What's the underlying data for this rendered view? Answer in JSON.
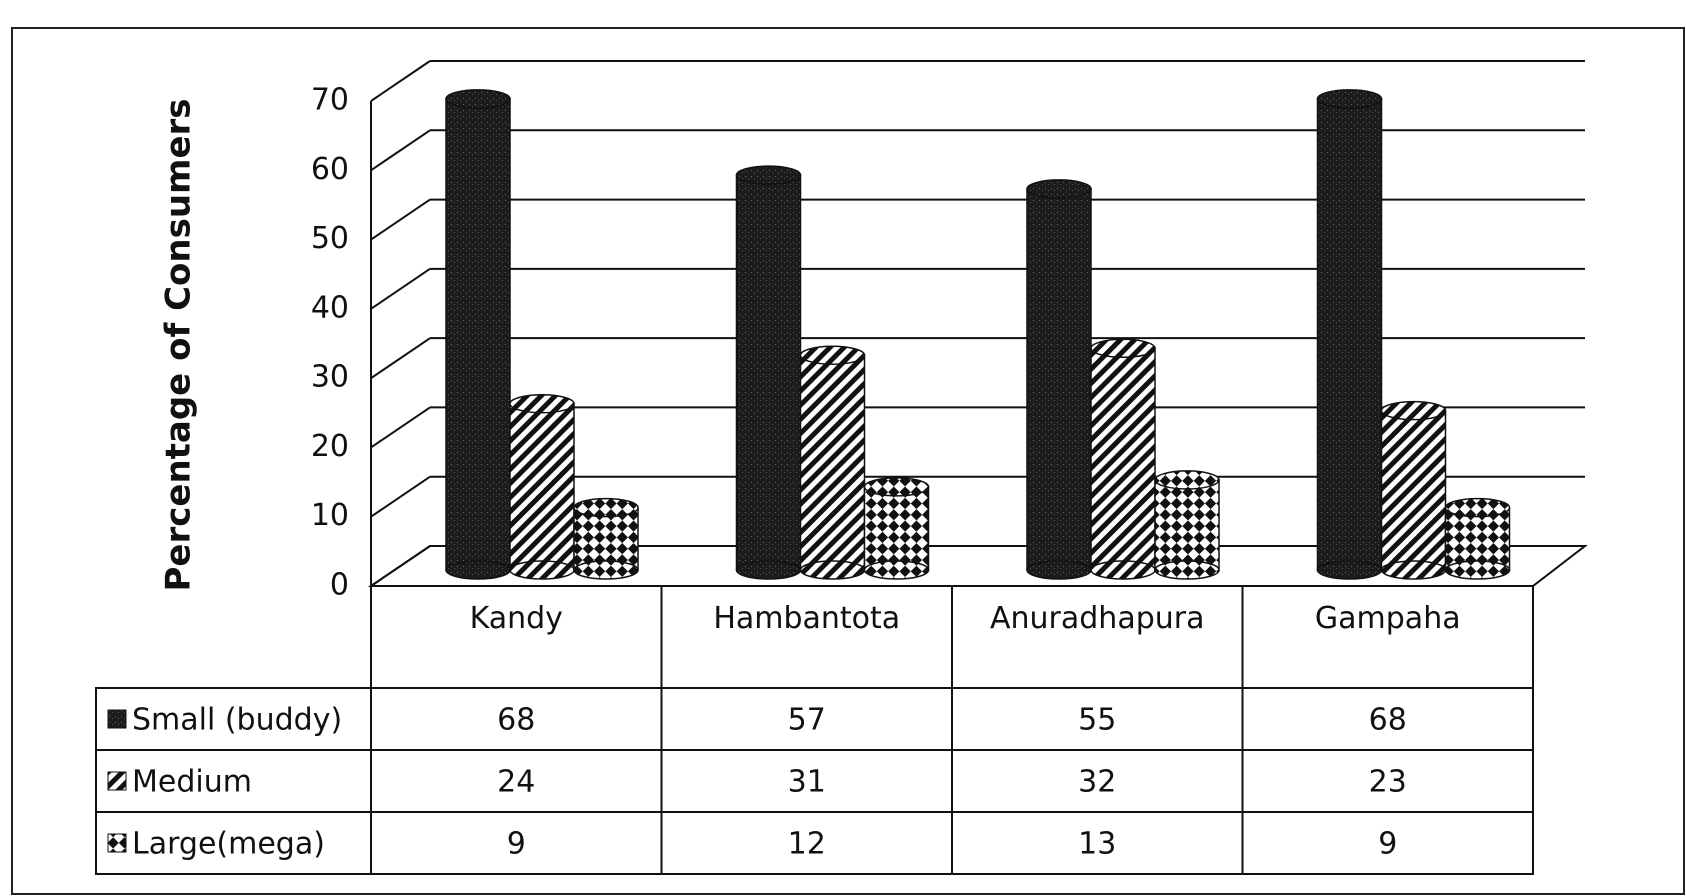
{
  "chart_data": {
    "type": "bar3d_table",
    "y_label": "Percentage of Consumers",
    "categories": [
      "Kandy",
      "Hambantota",
      "Anuradhapura",
      "Gampaha"
    ],
    "series": [
      {
        "name": "Small (buddy)",
        "values": [
          68,
          57,
          55,
          68
        ]
      },
      {
        "name": "Medium",
        "values": [
          24,
          31,
          32,
          23
        ]
      },
      {
        "name": "Large(mega)",
        "values": [
          9,
          12,
          13,
          9
        ]
      }
    ],
    "ylim": [
      0,
      70
    ],
    "yticks": [
      0,
      10,
      20,
      30,
      40,
      50,
      60,
      70
    ],
    "grid": true
  }
}
